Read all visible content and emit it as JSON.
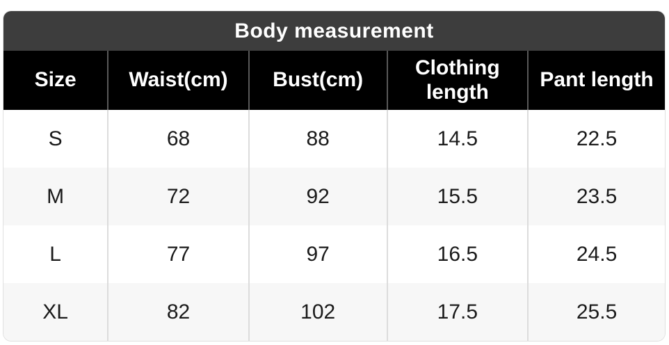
{
  "chart_data": {
    "type": "table",
    "title": "Body measurement",
    "columns": [
      "Size",
      "Waist(cm)",
      "Bust(cm)",
      "Clothing length",
      "Pant length"
    ],
    "rows": [
      [
        "S",
        "68",
        "88",
        "14.5",
        "22.5"
      ],
      [
        "M",
        "72",
        "92",
        "15.5",
        "23.5"
      ],
      [
        "L",
        "77",
        "97",
        "16.5",
        "24.5"
      ],
      [
        "XL",
        "82",
        "102",
        "17.5",
        "25.5"
      ]
    ]
  },
  "colors": {
    "title_bar_bg": "#3d3d3d",
    "header_bg": "#000000",
    "header_text": "#ffffff",
    "row_bg": "#ffffff",
    "row_alt_bg": "#f7f7f7",
    "body_text": "#1a1a1a",
    "header_divider": "#595959",
    "grid_divider": "#dcdcdc"
  }
}
